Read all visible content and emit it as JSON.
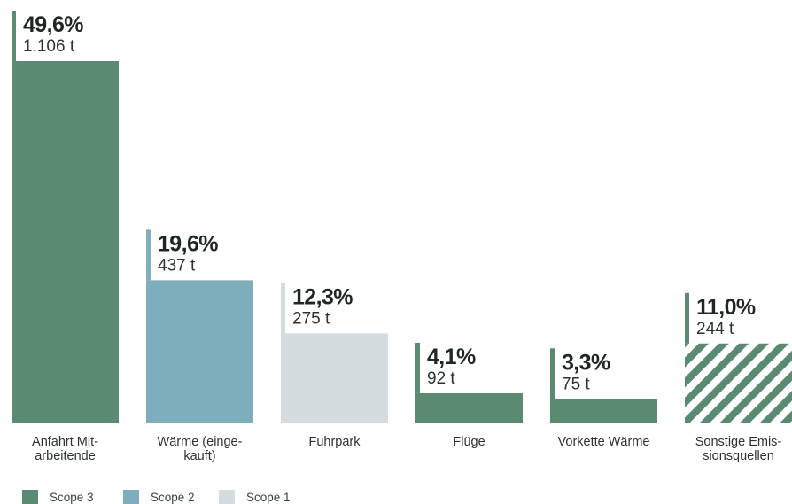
{
  "colors": {
    "scope3": "#5a8a72",
    "scope2": "#7eaebb",
    "scope1": "#d5dcdf",
    "text": "#2b3333"
  },
  "chart_data": {
    "type": "bar",
    "categories": [
      [
        "Anfahrt Mit-",
        "arbeitende"
      ],
      [
        "Wärme (einge-",
        "kauft)"
      ],
      [
        "Fuhrpark"
      ],
      [
        "Flüge"
      ],
      [
        "Vorkette Wärme"
      ],
      [
        "Sonstige Emis-",
        "sionsquellen"
      ]
    ],
    "values": [
      1106,
      437,
      275,
      92,
      75,
      244
    ],
    "percent_labels": [
      "49,6%",
      "19,6%",
      "12,3%",
      "4,1%",
      "3,3%",
      "11,0%"
    ],
    "value_labels": [
      "1.106 t",
      "437 t",
      "275 t",
      "92 t",
      "75 t",
      "244 t"
    ],
    "scopes": [
      "Scope 3",
      "Scope 2",
      "Scope 1",
      "Scope 3",
      "Scope 3",
      "Scope 3"
    ],
    "patterns": [
      "solid",
      "solid",
      "solid",
      "solid",
      "solid",
      "hatched"
    ],
    "unit": "t",
    "ylim": [
      0,
      1106
    ],
    "grid": false,
    "legend": {
      "position": "bottom-left",
      "entries": [
        {
          "name": "Scope 3",
          "color": "#5a8a72"
        },
        {
          "name": "Scope 2",
          "color": "#7eaebb"
        },
        {
          "name": "Scope 1",
          "color": "#d5dcdf"
        }
      ]
    }
  }
}
